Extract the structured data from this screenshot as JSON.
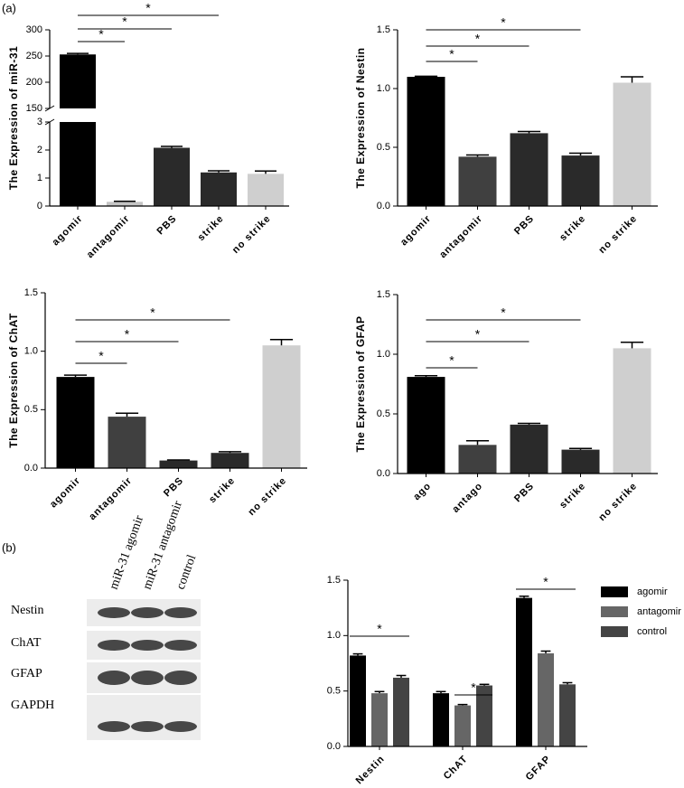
{
  "figure": {
    "panel_labels": [
      "(a)",
      "(b)"
    ]
  },
  "blot": {
    "lanes": [
      "miR-31 agomir",
      "miR-31 antagomir",
      "control"
    ],
    "rows": [
      "Nestin",
      "ChAT",
      "GFAP",
      "GAPDH"
    ]
  },
  "chart_data": [
    {
      "type": "bar",
      "y_label": "The Expression of miR-31",
      "categories": [
        "agomir",
        "antagomir",
        "PBS",
        "strike",
        "no strike"
      ],
      "values": [
        253,
        0.15,
        2.08,
        1.2,
        1.15
      ],
      "errors": [
        2,
        0.02,
        0.05,
        0.06,
        0.1
      ],
      "colors": [
        "#000000",
        "#c4c4c4",
        "#2a2a2a",
        "#2a2a2a",
        "#cfcfcf"
      ],
      "ylim": [
        0,
        3
      ],
      "yticks": [
        0,
        1,
        2,
        3
      ],
      "y_break": {
        "ylim": [
          150,
          300
        ],
        "yticks": [
          150,
          200,
          250,
          300
        ]
      },
      "comparisons": [
        {
          "between": [
            0,
            1
          ],
          "label": "*"
        },
        {
          "between": [
            0,
            2
          ],
          "label": "*"
        },
        {
          "between": [
            0,
            3
          ],
          "label": "*"
        }
      ]
    },
    {
      "type": "bar",
      "y_label": "The Expression of Nestin",
      "categories": [
        "agomir",
        "antagomir",
        "PBS",
        "strike",
        "no strike"
      ],
      "values": [
        1.1,
        0.42,
        0.62,
        0.43,
        1.05
      ],
      "errors": [
        0.005,
        0.015,
        0.015,
        0.02,
        0.05
      ],
      "colors": [
        "#000000",
        "#404040",
        "#2a2a2a",
        "#2a2a2a",
        "#cfcfcf"
      ],
      "ylim": [
        0,
        1.5
      ],
      "yticks": [
        {
          "value": 0,
          "label": "0.0"
        },
        0.5,
        {
          "value": 1,
          "label": "1.0"
        },
        1.5
      ],
      "comparisons": [
        {
          "between": [
            0,
            1
          ],
          "label": "*"
        },
        {
          "between": [
            0,
            2
          ],
          "label": "*"
        },
        {
          "between": [
            0,
            3
          ],
          "label": "*"
        }
      ]
    },
    {
      "type": "bar",
      "y_label": "The Expression of ChAT",
      "categories": [
        "agomir",
        "antagomir",
        "PBS",
        "strike",
        "no strike"
      ],
      "values": [
        0.78,
        0.44,
        0.065,
        0.13,
        1.05
      ],
      "errors": [
        0.015,
        0.03,
        0.005,
        0.01,
        0.05
      ],
      "colors": [
        "#000000",
        "#404040",
        "#2a2a2a",
        "#2a2a2a",
        "#cfcfcf"
      ],
      "ylim": [
        0,
        1.5
      ],
      "yticks": [
        {
          "value": 0,
          "label": "0.0"
        },
        0.5,
        {
          "value": 1,
          "label": "1.0"
        },
        1.5
      ],
      "comparisons": [
        {
          "between": [
            0,
            1
          ],
          "label": "*"
        },
        {
          "between": [
            0,
            2
          ],
          "label": "*"
        },
        {
          "between": [
            0,
            3
          ],
          "label": "*"
        }
      ]
    },
    {
      "type": "bar",
      "y_label": "The Expression of GFAP",
      "categories": [
        "ago",
        "antago",
        "PBS",
        "strike",
        "no strike"
      ],
      "values": [
        0.81,
        0.24,
        0.41,
        0.2,
        1.05
      ],
      "errors": [
        0.01,
        0.035,
        0.01,
        0.01,
        0.05
      ],
      "colors": [
        "#000000",
        "#404040",
        "#2a2a2a",
        "#2a2a2a",
        "#cfcfcf"
      ],
      "ylim": [
        0,
        1.5
      ],
      "yticks": [
        {
          "value": 0,
          "label": "0.0"
        },
        0.5,
        {
          "value": 1,
          "label": "1.0"
        },
        1.5
      ],
      "comparisons": [
        {
          "between": [
            0,
            1
          ],
          "label": "*"
        },
        {
          "between": [
            0,
            2
          ],
          "label": "*"
        },
        {
          "between": [
            0,
            3
          ],
          "label": "*"
        }
      ]
    },
    {
      "type": "grouped_bar",
      "categories": [
        "Nestin",
        "ChAT",
        "GFAP"
      ],
      "series": [
        {
          "name": "agomir",
          "color": "#000000",
          "values": [
            0.82,
            0.48,
            1.34
          ],
          "errors": [
            0.015,
            0.015,
            0.015
          ]
        },
        {
          "name": "antagomir",
          "color": "#666666",
          "values": [
            0.48,
            0.37,
            0.84
          ],
          "errors": [
            0.015,
            0.008,
            0.02
          ]
        },
        {
          "name": "control",
          "color": "#444444",
          "values": [
            0.62,
            0.55,
            0.56
          ],
          "errors": [
            0.02,
            0.01,
            0.015
          ]
        }
      ],
      "ylim": [
        0,
        1.5
      ],
      "yticks": [
        {
          "value": 0,
          "label": "0.0"
        },
        0.5,
        {
          "value": 1,
          "label": "1.0"
        },
        1.5
      ],
      "legend": "upper right",
      "comparisons": [
        {
          "category": 0,
          "between": [
            0,
            2
          ],
          "label": "*"
        },
        {
          "category": 1,
          "between": [
            1,
            2
          ],
          "label": "*"
        },
        {
          "category": 2,
          "between": [
            0,
            2
          ],
          "label": "*"
        }
      ]
    }
  ]
}
